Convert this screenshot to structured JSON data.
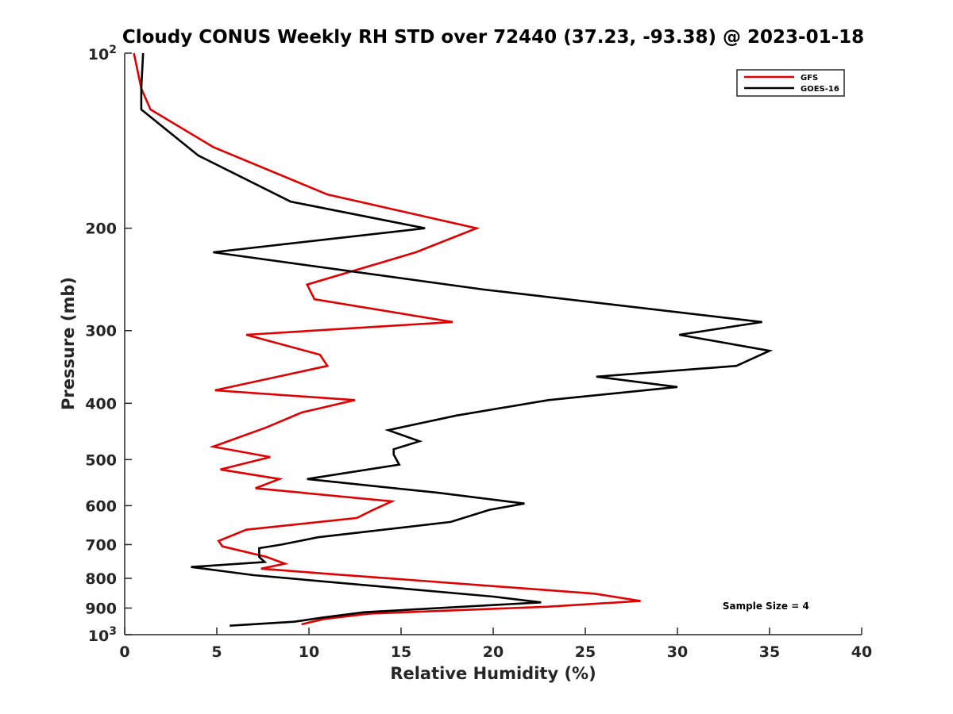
{
  "chart_data": {
    "type": "line",
    "title": "Cloudy CONUS Weekly RH STD over 72440 (37.23, -93.38) @ 2023-01-18",
    "xlabel": "Relative Humidity (%)",
    "ylabel": "Pressure (mb)",
    "xlim": [
      0,
      40
    ],
    "ylim": [
      100,
      1000
    ],
    "y_scale": "log",
    "y_reversed": true,
    "grid": false,
    "x_ticks": [
      0,
      5,
      10,
      15,
      20,
      25,
      30,
      35,
      40
    ],
    "y_ticks": [
      {
        "value": 100,
        "base": "10",
        "exp": "2"
      },
      {
        "value": 200,
        "label": "200"
      },
      {
        "value": 300,
        "label": "300"
      },
      {
        "value": 400,
        "label": "400"
      },
      {
        "value": 500,
        "label": "500"
      },
      {
        "value": 600,
        "label": "600"
      },
      {
        "value": 700,
        "label": "700"
      },
      {
        "value": 800,
        "label": "800"
      },
      {
        "value": 900,
        "label": "900"
      },
      {
        "value": 1000,
        "base": "10",
        "exp": "3"
      }
    ],
    "legend_position": "top-right",
    "series": [
      {
        "name": "GFS",
        "color": "#e00000",
        "points": [
          [
            0.5,
            100
          ],
          [
            0.9,
            115
          ],
          [
            1.4,
            125
          ],
          [
            4.8,
            145
          ],
          [
            11.0,
            175
          ],
          [
            19.1,
            200
          ],
          [
            15.8,
            220
          ],
          [
            9.9,
            250
          ],
          [
            10.3,
            265
          ],
          [
            17.8,
            290
          ],
          [
            6.6,
            305
          ],
          [
            10.6,
            330
          ],
          [
            11.0,
            345
          ],
          [
            4.9,
            380
          ],
          [
            12.5,
            395
          ],
          [
            9.6,
            415
          ],
          [
            7.7,
            440
          ],
          [
            4.8,
            475
          ],
          [
            7.9,
            495
          ],
          [
            5.2,
            520
          ],
          [
            8.4,
            540
          ],
          [
            7.1,
            560
          ],
          [
            14.5,
            590
          ],
          [
            13.5,
            610
          ],
          [
            12.6,
            630
          ],
          [
            6.6,
            660
          ],
          [
            5.1,
            690
          ],
          [
            5.3,
            705
          ],
          [
            7.7,
            735
          ],
          [
            8.7,
            755
          ],
          [
            7.4,
            770
          ],
          [
            10.8,
            785
          ],
          [
            25.5,
            850
          ],
          [
            28.0,
            875
          ],
          [
            23.0,
            895
          ],
          [
            13.3,
            920
          ],
          [
            10.8,
            940
          ],
          [
            9.6,
            960
          ]
        ]
      },
      {
        "name": "GOES-16",
        "color": "#000000",
        "points": [
          [
            1.0,
            100
          ],
          [
            0.9,
            115
          ],
          [
            0.9,
            125
          ],
          [
            4.0,
            150
          ],
          [
            9.0,
            180
          ],
          [
            16.3,
            200
          ],
          [
            4.8,
            220
          ],
          [
            19.5,
            255
          ],
          [
            34.6,
            290
          ],
          [
            30.1,
            305
          ],
          [
            35.0,
            325
          ],
          [
            33.2,
            345
          ],
          [
            25.6,
            360
          ],
          [
            30.0,
            375
          ],
          [
            23.0,
            395
          ],
          [
            18.0,
            420
          ],
          [
            14.3,
            445
          ],
          [
            16.0,
            465
          ],
          [
            14.6,
            480
          ],
          [
            14.6,
            490
          ],
          [
            14.9,
            510
          ],
          [
            9.9,
            540
          ],
          [
            17.0,
            570
          ],
          [
            21.7,
            595
          ],
          [
            19.8,
            610
          ],
          [
            17.7,
            640
          ],
          [
            10.5,
            680
          ],
          [
            8.5,
            700
          ],
          [
            7.3,
            710
          ],
          [
            7.3,
            735
          ],
          [
            7.6,
            750
          ],
          [
            3.6,
            765
          ],
          [
            7.0,
            790
          ],
          [
            20.0,
            860
          ],
          [
            22.6,
            880
          ],
          [
            13.0,
            915
          ],
          [
            10.7,
            935
          ],
          [
            9.2,
            950
          ],
          [
            5.7,
            965
          ]
        ]
      }
    ],
    "annotations": [
      {
        "text": "Sample Size = 4",
        "x": 34.8,
        "p": 905
      }
    ]
  }
}
